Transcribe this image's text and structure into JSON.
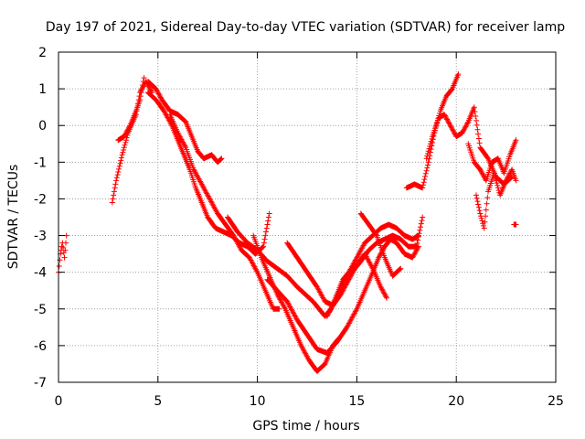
{
  "chart_data": {
    "type": "scatter",
    "title": "Day 197 of 2021, Sidereal Day-to-day VTEC variation (SDTVAR) for receiver lamp",
    "xlabel": "GPS time / hours",
    "ylabel": "SDTVAR / TECUs",
    "xlim": [
      0,
      25
    ],
    "ylim": [
      -7,
      2
    ],
    "xticks": [
      "0",
      "5",
      "10",
      "15",
      "20",
      "25"
    ],
    "yticks": [
      "2",
      "1",
      "0",
      "-1",
      "-2",
      "-3",
      "-4",
      "-5",
      "-6",
      "-7"
    ],
    "grid": true,
    "marker": "plus",
    "color": "#ff0000",
    "series": [
      {
        "x": [
          0.0,
          0.1,
          0.2,
          0.3,
          0.4
        ],
        "y": [
          -4.0,
          -3.5,
          -3.2,
          -3.6,
          -3.0
        ]
      },
      {
        "x": [
          2.7,
          2.9,
          3.2,
          3.5,
          3.9,
          4.1,
          4.4,
          4.7
        ],
        "y": [
          -2.1,
          -1.5,
          -0.8,
          -0.2,
          0.3,
          0.9,
          1.2,
          0.9
        ]
      },
      {
        "x": [
          3.0,
          3.3,
          3.6,
          3.9,
          4.1,
          4.3
        ],
        "y": [
          -0.4,
          -0.3,
          0.0,
          0.4,
          0.7,
          1.3
        ]
      },
      {
        "x": [
          4.5,
          4.9,
          5.2,
          5.6,
          6.0,
          6.4,
          6.7,
          7.0,
          7.3,
          7.7,
          8.0,
          8.2
        ],
        "y": [
          1.2,
          1.0,
          0.7,
          0.4,
          0.3,
          0.1,
          -0.3,
          -0.7,
          -0.9,
          -0.8,
          -1.0,
          -0.9
        ]
      },
      {
        "x": [
          4.5,
          4.9,
          5.3,
          5.7,
          6.0,
          6.3,
          6.6,
          6.9,
          7.2,
          7.5,
          7.9,
          8.3,
          8.7,
          9.1,
          9.5,
          9.9,
          10.3,
          10.6
        ],
        "y": [
          0.9,
          0.7,
          0.4,
          0.0,
          -0.4,
          -0.8,
          -1.2,
          -1.7,
          -2.1,
          -2.5,
          -2.8,
          -2.9,
          -3.0,
          -3.2,
          -3.3,
          -3.5,
          -3.3,
          -2.4
        ]
      },
      {
        "x": [
          5.6,
          6.0,
          6.4,
          6.8,
          7.2,
          7.6,
          8.0,
          8.4,
          8.8,
          9.2,
          9.6,
          10.0,
          10.4,
          10.8,
          11.1
        ],
        "y": [
          0.3,
          -0.2,
          -0.6,
          -1.2,
          -1.6,
          -2.0,
          -2.4,
          -2.7,
          -3.0,
          -3.4,
          -3.6,
          -4.0,
          -4.5,
          -5.0,
          -5.0
        ]
      },
      {
        "x": [
          8.5,
          9.0,
          9.5,
          10.0,
          10.5,
          11.0,
          11.5,
          12.0,
          12.4,
          12.8,
          13.1,
          13.4,
          13.7,
          14.0,
          14.3,
          14.6,
          14.9,
          15.2,
          15.6,
          16.0,
          16.4,
          16.8,
          17.2,
          17.6,
          18.0,
          18.3
        ],
        "y": [
          -2.5,
          -2.9,
          -3.2,
          -3.4,
          -3.7,
          -3.9,
          -4.1,
          -4.4,
          -4.6,
          -4.8,
          -5.0,
          -5.2,
          -5.0,
          -4.6,
          -4.2,
          -4.0,
          -3.9,
          -3.7,
          -3.4,
          -3.2,
          -3.1,
          -3.0,
          -3.1,
          -3.3,
          -3.3,
          -2.5
        ]
      },
      {
        "x": [
          9.8,
          10.2,
          10.6,
          11.0,
          11.4,
          11.8,
          12.2,
          12.6,
          13.0,
          13.4,
          13.8,
          14.1
        ],
        "y": [
          -3.0,
          -3.6,
          -4.1,
          -4.6,
          -5.0,
          -5.5,
          -6.0,
          -6.4,
          -6.7,
          -6.5,
          -6.0,
          -5.8
        ]
      },
      {
        "x": [
          10.5,
          11.0,
          11.5,
          12.0,
          12.5,
          13.0,
          13.5,
          14.0,
          14.5,
          15.0,
          15.4,
          15.8,
          16.1,
          16.4,
          16.7,
          17.0,
          17.4,
          17.8,
          18.1
        ],
        "y": [
          -4.2,
          -4.5,
          -4.8,
          -5.3,
          -5.7,
          -6.1,
          -6.2,
          -5.9,
          -5.5,
          -5.0,
          -4.5,
          -4.0,
          -3.6,
          -3.3,
          -3.1,
          -3.2,
          -3.5,
          -3.6,
          -3.3
        ]
      },
      {
        "x": [
          11.5,
          12.0,
          12.5,
          13.0,
          13.4,
          13.8,
          14.2,
          14.6,
          15.0,
          15.4,
          15.8,
          16.2,
          16.5
        ],
        "y": [
          -3.2,
          -3.6,
          -4.0,
          -4.4,
          -4.8,
          -4.9,
          -4.6,
          -4.2,
          -3.8,
          -3.5,
          -3.9,
          -4.4,
          -4.7
        ]
      },
      {
        "x": [
          13.5,
          14.0,
          14.5,
          15.0,
          15.4,
          15.8,
          16.2,
          16.6,
          17.0,
          17.4,
          17.8,
          18.1
        ],
        "y": [
          -5.2,
          -4.7,
          -4.1,
          -3.6,
          -3.2,
          -3.0,
          -2.8,
          -2.7,
          -2.8,
          -3.0,
          -3.1,
          -3.0
        ]
      },
      {
        "x": [
          15.2,
          15.6,
          16.0,
          16.4,
          16.8,
          17.2
        ],
        "y": [
          -2.4,
          -2.7,
          -3.0,
          -3.6,
          -4.1,
          -3.9
        ]
      },
      {
        "x": [
          17.5,
          17.9,
          18.3,
          18.6,
          18.9,
          19.2,
          19.5,
          19.8,
          20.1
        ],
        "y": [
          -1.7,
          -1.6,
          -1.7,
          -1.0,
          -0.2,
          0.4,
          0.8,
          1.0,
          1.4
        ]
      },
      {
        "x": [
          18.5,
          18.8,
          19.1,
          19.4,
          19.7,
          20.0,
          20.3,
          20.6,
          20.9,
          21.2,
          21.6,
          22.0,
          22.4,
          22.8
        ],
        "y": [
          -0.9,
          -0.3,
          0.2,
          0.3,
          0.0,
          -0.3,
          -0.2,
          0.1,
          0.5,
          -0.6,
          -0.9,
          -1.4,
          -1.6,
          -1.4
        ]
      },
      {
        "x": [
          20.6,
          20.9,
          21.2,
          21.5,
          21.8,
          22.1,
          22.4,
          22.7,
          23.0
        ],
        "y": [
          -0.5,
          -1.0,
          -1.2,
          -1.5,
          -1.0,
          -0.9,
          -1.3,
          -0.8,
          -0.4
        ]
      },
      {
        "x": [
          21.0,
          21.2,
          21.4,
          21.6,
          21.9,
          22.2,
          22.5,
          22.8,
          23.0
        ],
        "y": [
          -1.9,
          -2.4,
          -2.8,
          -1.8,
          -1.3,
          -1.9,
          -1.5,
          -1.2,
          -1.5
        ]
      },
      {
        "x": [
          22.9,
          23.0
        ],
        "y": [
          -2.7,
          -2.7
        ]
      }
    ]
  }
}
